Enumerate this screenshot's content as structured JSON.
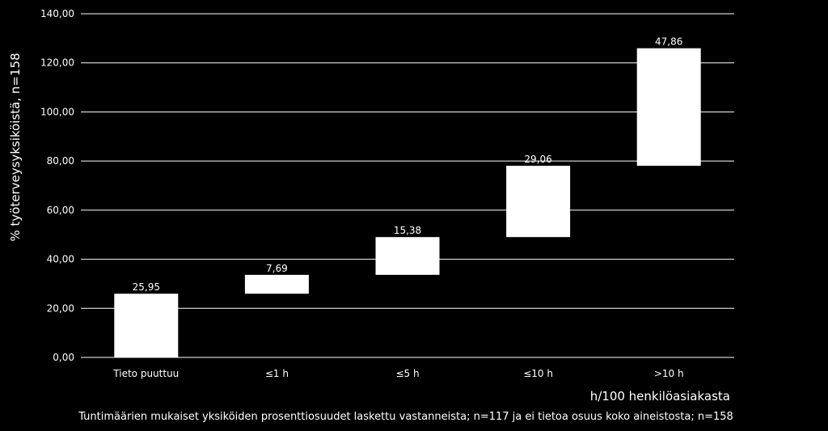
{
  "chart_data": {
    "type": "bar",
    "subtype": "waterfall",
    "categories": [
      "Tieto puuttuu",
      "≤1 h",
      "≤5 h",
      "≤10 h",
      ">10 h"
    ],
    "values": [
      25.95,
      7.69,
      15.38,
      29.06,
      47.86
    ],
    "value_labels": [
      "25,95",
      "7,69",
      "15,38",
      "29,06",
      "47,86"
    ],
    "ylabel": "% työterveysyksiköistä, n=158",
    "xlabel": "h/100 henkilöasiakasta",
    "footnote": "Tuntimäärien mukaiset yksiköiden prosenttiosuudet laskettu vastanneista; n=117 ja ei tietoa osuus koko aineistosta; n=158",
    "ylim": [
      0,
      140
    ],
    "yticks": [
      0,
      20,
      40,
      60,
      80,
      100,
      120,
      140
    ],
    "ytick_labels": [
      "0,00",
      "20,00",
      "40,00",
      "60,00",
      "80,00",
      "100,00",
      "120,00",
      "140,00"
    ],
    "grid": true,
    "legend": "none",
    "colors": {
      "background": "#000000",
      "bar": "#ffffff",
      "grid": "#ffffff",
      "text": "#ffffff"
    }
  }
}
